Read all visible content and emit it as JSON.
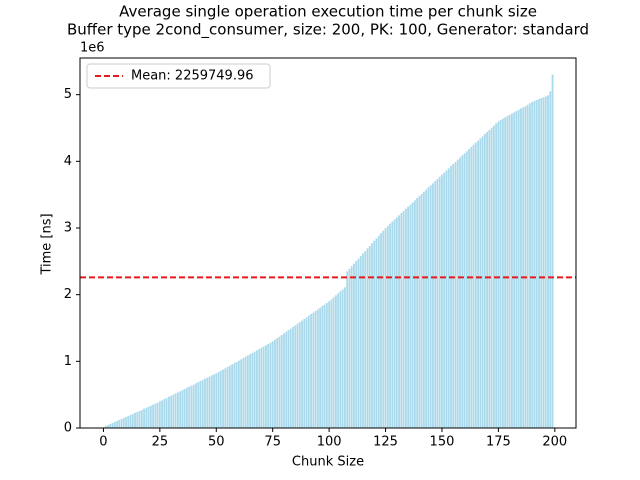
{
  "chart_data": {
    "type": "bar",
    "title": "Average single operation execution time per chunk size",
    "subtitle": "Buffer type 2cond_consumer, size: 200, PK: 100, Generator: standard",
    "xlabel": "Chunk Size",
    "ylabel": "Time [ns]",
    "y_offset_label": "1e6",
    "color": "#a9d9ea",
    "x": [
      0,
      1,
      2,
      3,
      4,
      5,
      6,
      7,
      8,
      9,
      10,
      11,
      12,
      13,
      14,
      15,
      16,
      17,
      18,
      19,
      20,
      21,
      22,
      23,
      24,
      25,
      26,
      27,
      28,
      29,
      30,
      31,
      32,
      33,
      34,
      35,
      36,
      37,
      38,
      39,
      40,
      41,
      42,
      43,
      44,
      45,
      46,
      47,
      48,
      49,
      50,
      51,
      52,
      53,
      54,
      55,
      56,
      57,
      58,
      59,
      60,
      61,
      62,
      63,
      64,
      65,
      66,
      67,
      68,
      69,
      70,
      71,
      72,
      73,
      74,
      75,
      76,
      77,
      78,
      79,
      80,
      81,
      82,
      83,
      84,
      85,
      86,
      87,
      88,
      89,
      90,
      91,
      92,
      93,
      94,
      95,
      96,
      97,
      98,
      99,
      100,
      101,
      102,
      103,
      104,
      105,
      106,
      107,
      108,
      109,
      110,
      111,
      112,
      113,
      114,
      115,
      116,
      117,
      118,
      119,
      120,
      121,
      122,
      123,
      124,
      125,
      126,
      127,
      128,
      129,
      130,
      131,
      132,
      133,
      134,
      135,
      136,
      137,
      138,
      139,
      140,
      141,
      142,
      143,
      144,
      145,
      146,
      147,
      148,
      149,
      150,
      151,
      152,
      153,
      154,
      155,
      156,
      157,
      158,
      159,
      160,
      161,
      162,
      163,
      164,
      165,
      166,
      167,
      168,
      169,
      170,
      171,
      172,
      173,
      174,
      175,
      176,
      177,
      178,
      179,
      180,
      181,
      182,
      183,
      184,
      185,
      186,
      187,
      188,
      189,
      190,
      191,
      192,
      193,
      194,
      195,
      196,
      197,
      198,
      199
    ],
    "values": [
      10000,
      30000,
      45000,
      60000,
      75000,
      90000,
      105000,
      120000,
      135000,
      150000,
      165000,
      180000,
      195000,
      210000,
      230000,
      240000,
      255000,
      270000,
      290000,
      305000,
      320000,
      335000,
      350000,
      365000,
      380000,
      400000,
      415000,
      435000,
      450000,
      470000,
      485000,
      500000,
      520000,
      535000,
      550000,
      570000,
      585000,
      605000,
      620000,
      635000,
      650000,
      670000,
      690000,
      705000,
      720000,
      740000,
      755000,
      770000,
      790000,
      805000,
      820000,
      840000,
      860000,
      875000,
      895000,
      915000,
      935000,
      955000,
      975000,
      990000,
      1010000,
      1030000,
      1050000,
      1070000,
      1090000,
      1110000,
      1125000,
      1145000,
      1165000,
      1185000,
      1205000,
      1225000,
      1240000,
      1260000,
      1280000,
      1300000,
      1325000,
      1350000,
      1370000,
      1395000,
      1420000,
      1445000,
      1470000,
      1490000,
      1515000,
      1540000,
      1565000,
      1590000,
      1610000,
      1635000,
      1660000,
      1685000,
      1710000,
      1730000,
      1755000,
      1780000,
      1805000,
      1830000,
      1850000,
      1875000,
      1900000,
      1930000,
      1960000,
      1990000,
      2020000,
      2050000,
      2080000,
      2110000,
      2350000,
      2390000,
      2430000,
      2465000,
      2505000,
      2540000,
      2580000,
      2620000,
      2655000,
      2695000,
      2730000,
      2770000,
      2810000,
      2845000,
      2885000,
      2925000,
      2960000,
      3000000,
      3030000,
      3065000,
      3095000,
      3130000,
      3160000,
      3190000,
      3225000,
      3255000,
      3290000,
      3320000,
      3350000,
      3385000,
      3415000,
      3450000,
      3480000,
      3510000,
      3545000,
      3575000,
      3610000,
      3640000,
      3670000,
      3705000,
      3735000,
      3770000,
      3800000,
      3830000,
      3865000,
      3895000,
      3930000,
      3960000,
      3990000,
      4025000,
      4055000,
      4090000,
      4120000,
      4150000,
      4185000,
      4215000,
      4250000,
      4280000,
      4310000,
      4345000,
      4375000,
      4410000,
      4440000,
      4470000,
      4505000,
      4535000,
      4570000,
      4600000,
      4620000,
      4640000,
      4660000,
      4680000,
      4700000,
      4715000,
      4735000,
      4755000,
      4775000,
      4795000,
      4810000,
      4830000,
      4850000,
      4870000,
      4890000,
      4905000,
      4920000,
      4935000,
      4950000,
      4960000,
      4975000,
      4990000,
      5050000,
      5300000
    ],
    "mean": {
      "value": 2259749.96,
      "label": "Mean: 2259749.96",
      "color": "#e41a1c"
    },
    "legend": "upper left",
    "xlim": [
      -10.39,
      209.39
    ],
    "xticks": [
      0,
      25,
      50,
      75,
      100,
      125,
      150,
      175,
      200
    ],
    "ylim": [
      0,
      5550000
    ],
    "yticks": [
      {
        "value": 0,
        "label": "0"
      },
      {
        "value": 1000000,
        "label": "1"
      },
      {
        "value": 2000000,
        "label": "2"
      },
      {
        "value": 3000000,
        "label": "3"
      },
      {
        "value": 4000000,
        "label": "4"
      },
      {
        "value": 5000000,
        "label": "5"
      }
    ]
  }
}
